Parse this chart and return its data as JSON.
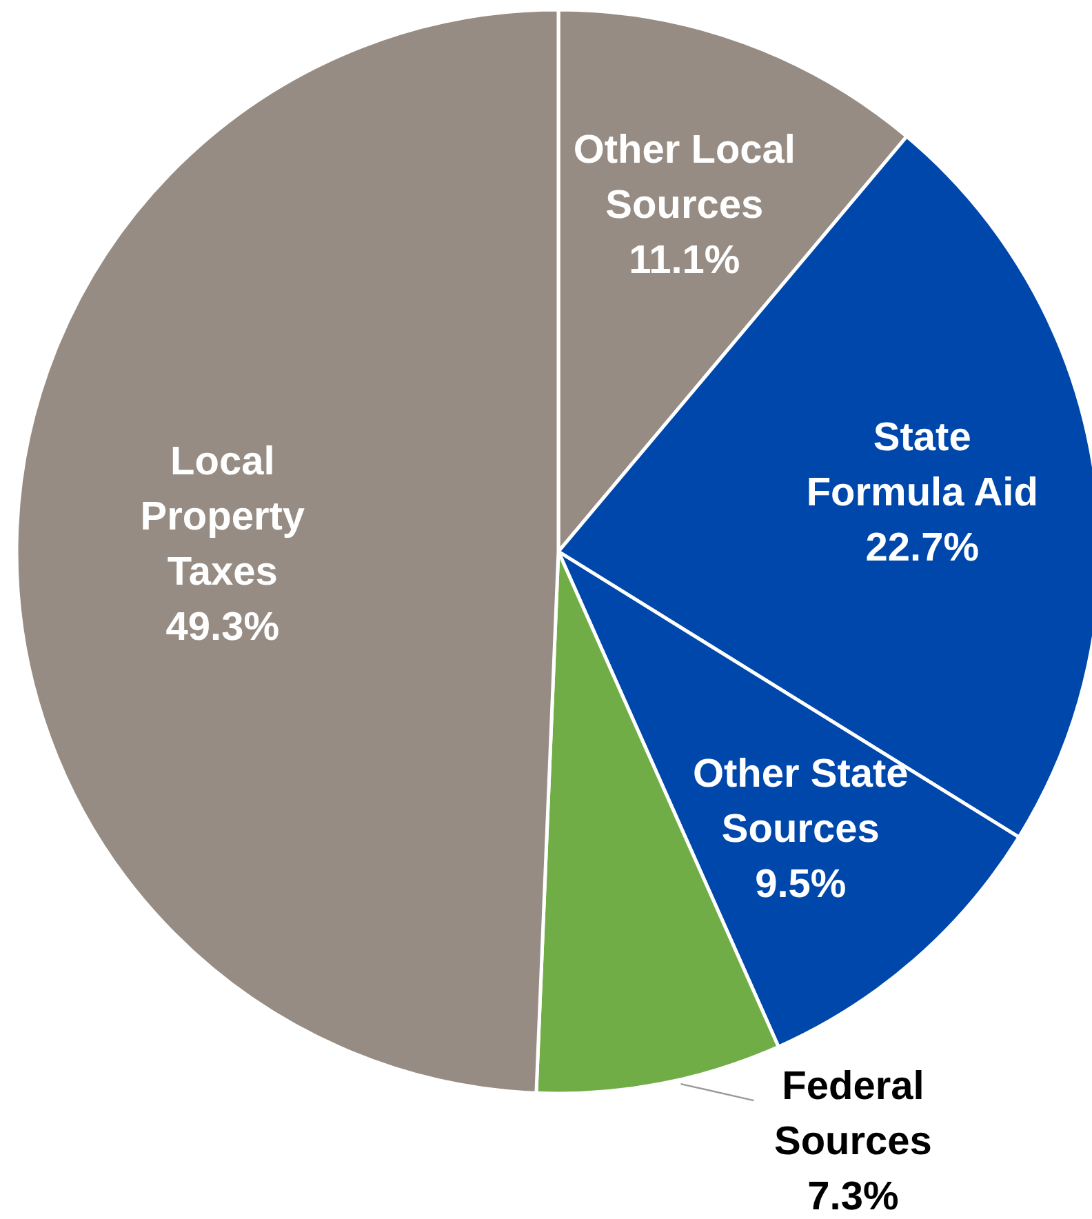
{
  "chart_data": {
    "type": "pie",
    "categories": [
      "Other Local Sources",
      "State Formula Aid",
      "Other State Sources",
      "Federal Sources",
      "Local Property Taxes"
    ],
    "values": [
      11.1,
      22.7,
      9.5,
      7.3,
      49.3
    ],
    "colors": [
      "#968c83",
      "#0047ab",
      "#0047ab",
      "#70ad47",
      "#968c83"
    ],
    "value_labels": [
      "11.1%",
      "22.7%",
      "9.5%",
      "7.3%",
      "49.3%"
    ]
  }
}
